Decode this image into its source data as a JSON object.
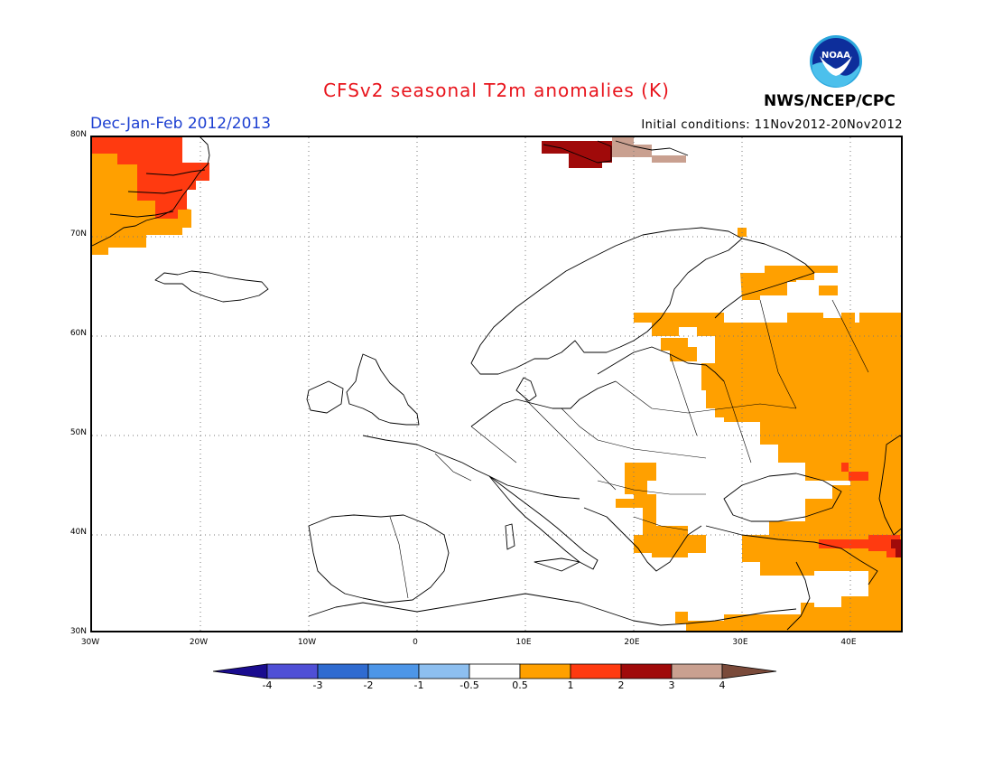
{
  "header": {
    "title": "CFSv2 seasonal T2m anomalies (K)",
    "period": "Dec-Jan-Feb 2012/2013",
    "initial_conditions": "Initial conditions: 11Nov2012-20Nov2012",
    "agency": "NWS/NCEP/CPC",
    "logo_text": "NOAA"
  },
  "map": {
    "lat_labels": [
      "80N",
      "70N",
      "60N",
      "50N",
      "40N",
      "30N"
    ],
    "lon_labels": [
      "30W",
      "20W",
      "10W",
      "0",
      "10E",
      "20E",
      "30E",
      "40E"
    ],
    "extent": {
      "lon_min": -30,
      "lon_max": 45,
      "lat_min": 30,
      "lat_max": 80
    },
    "anomaly_regions": [
      {
        "label": "Greenland east coast",
        "level": "1"
      },
      {
        "label": "Greenland interior",
        "level": "2"
      },
      {
        "label": "Svalbard",
        "level": "3"
      },
      {
        "label": "Svalbard east",
        "level": "4"
      },
      {
        "label": "Eastern Europe / Russia",
        "level": "1"
      },
      {
        "label": "Balkans",
        "level": "1"
      },
      {
        "label": "Turkey / Middle East",
        "level": "1"
      },
      {
        "label": "Caucasus",
        "level": "2"
      }
    ]
  },
  "colorbar": {
    "labels": [
      "-4",
      "-3",
      "-2",
      "-1",
      "-0.5",
      "0.5",
      "1",
      "2",
      "3",
      "4"
    ],
    "colors": [
      "#1a0c8f",
      "#4f4fd6",
      "#2f6bd0",
      "#4d96e8",
      "#8dbff0",
      "#ffffff",
      "#ffa000",
      "#ff3a10",
      "#a00a0a",
      "#c9a090",
      "#7a4a3a"
    ]
  }
}
